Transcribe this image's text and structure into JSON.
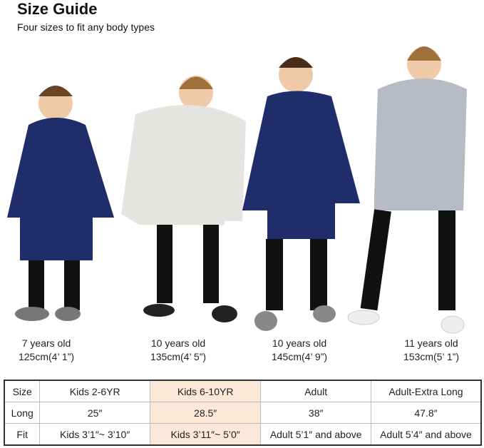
{
  "header": {
    "title": "Size Guide",
    "subtitle": "Four sizes to fit any body types"
  },
  "models": [
    {
      "age": "7 years old",
      "height": "125cm(4’ 1”)",
      "hoodie_color": "#1f2d6b"
    },
    {
      "age": "10 years old",
      "height": "135cm(4’ 5”)",
      "hoodie_color": "#e4e4e0"
    },
    {
      "age": "10 years old",
      "height": "145cm(4’ 9”)",
      "hoodie_color": "#1f2d6b"
    },
    {
      "age": "11 years old",
      "height": "153cm(5’ 1”)",
      "hoodie_color": "#b7bcc4"
    }
  ],
  "table": {
    "rows": [
      [
        "Size",
        "Kids 2-6YR",
        "Kids 6-10YR",
        "Adult",
        "Adult-Extra Long"
      ],
      [
        "Long",
        "25″",
        "28.5″",
        "38″",
        "47.8″"
      ],
      [
        "Fit",
        "Kids 3’1″~  3’10″",
        "Kids 3’11″~  5’0″",
        "Adult 5’1″ and above",
        "Adult 5’4″ and above"
      ]
    ],
    "highlight_color": "#fbe8d6"
  }
}
